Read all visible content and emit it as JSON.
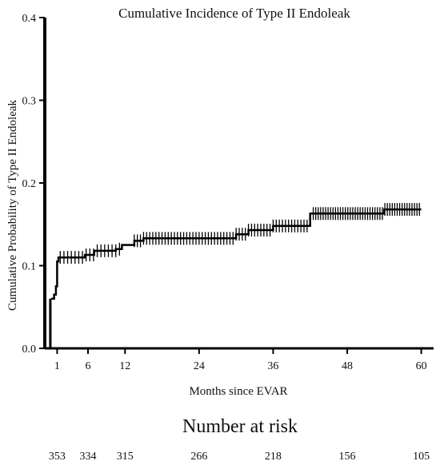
{
  "chart_data": {
    "type": "line",
    "title": "Cumulative Incidence of Type II Endoleak",
    "xlabel": "Months since EVAR",
    "ylabel": "Cumulative Probability of Type II Endoleak",
    "xlim": [
      -1,
      62
    ],
    "ylim": [
      0,
      0.4
    ],
    "x_ticks": [
      1,
      6,
      12,
      24,
      36,
      48,
      60
    ],
    "y_ticks": [
      0.0,
      0.1,
      0.2,
      0.3,
      0.4
    ],
    "y_tick_labels": [
      "0.0",
      "0.1",
      "0.2",
      "0.3",
      "0.4"
    ],
    "grid": false,
    "series": [
      {
        "step_x": [
          0,
          0.3,
          0.5,
          0.8,
          1.0,
          1.2,
          5.5,
          7.0,
          10.5,
          11.5,
          13.5,
          15.0,
          30.0,
          32.0,
          36.0,
          42.0,
          54.0,
          60.0
        ],
        "step_y": [
          0.06,
          0.06,
          0.065,
          0.075,
          0.105,
          0.11,
          0.113,
          0.118,
          0.12,
          0.125,
          0.13,
          0.133,
          0.138,
          0.143,
          0.148,
          0.163,
          0.168,
          0.168
        ],
        "censor_ranges": [
          [
            1.5,
            11.5,
            0.6
          ],
          [
            13.5,
            41.5,
            0.5
          ],
          [
            42.5,
            60,
            0.4
          ]
        ]
      }
    ],
    "risk_table": {
      "title": "Number at risk",
      "months": [
        1,
        6,
        12,
        24,
        36,
        48,
        60
      ],
      "counts": [
        "353",
        "334",
        "315",
        "266",
        "218",
        "156",
        "105"
      ]
    }
  }
}
